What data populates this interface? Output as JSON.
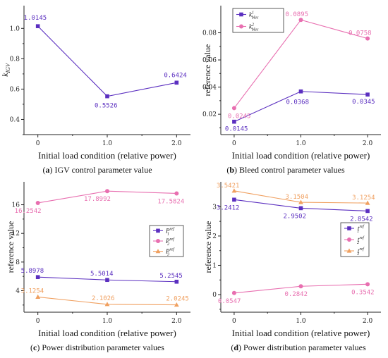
{
  "chart_data": [
    {
      "type": "line",
      "panel_id": "a",
      "caption_letter": "(a)",
      "caption_text": " IGV control parameter value",
      "xlabel": "Initial load condition (relative power)",
      "ylabel": "k_IGV",
      "ylabel_main": "k",
      "ylabel_sub": "IGV",
      "x": [
        0,
        1.0,
        2.0
      ],
      "xtick_labels": [
        "0",
        "1.0",
        "2.0"
      ],
      "xlim": [
        -0.2,
        2.2
      ],
      "ylim": [
        0.3,
        1.15
      ],
      "yticks": [
        0.4,
        0.6,
        0.8,
        1.0
      ],
      "ytick_labels": [
        "0.4",
        "0.6",
        "0.8",
        "1.0"
      ],
      "legend": null,
      "series": [
        {
          "values": [
            1.0145,
            0.5526,
            0.6424
          ],
          "labels": [
            "1.0145",
            "0.5526",
            "0.6424"
          ],
          "color": "#5b2fc0",
          "marker": "square"
        }
      ]
    },
    {
      "type": "line",
      "panel_id": "b",
      "caption_letter": "(b)",
      "caption_text": " Bleed control parameter values",
      "xlabel": "Initial load condition (relative power)",
      "ylabel": "reference value",
      "x": [
        0,
        1.0,
        2.0
      ],
      "xtick_labels": [
        "0",
        "1.0",
        "2.0"
      ],
      "xlim": [
        -0.2,
        2.2
      ],
      "ylim": [
        0.005,
        0.1
      ],
      "yticks": [
        0.02,
        0.04,
        0.06,
        0.08
      ],
      "ytick_labels": [
        "0.02",
        "0.04",
        "0.06",
        "0.08"
      ],
      "legend": "top-left",
      "series": [
        {
          "name": "k¹bleε",
          "legend_main": "k",
          "legend_sup": "1",
          "legend_sub": "bleε",
          "values": [
            0.0145,
            0.0368,
            0.0345
          ],
          "labels": [
            "0.0145",
            "0.0368",
            "0.0345"
          ],
          "color": "#5b2fc0",
          "marker": "square"
        },
        {
          "name": "k²bleε",
          "legend_main": "k",
          "legend_sup": "2",
          "legend_sub": "bleε",
          "values": [
            0.0245,
            0.0895,
            0.0758
          ],
          "labels": [
            "0.0245",
            "0.0895",
            "0.0758"
          ],
          "color": "#e86fb0",
          "marker": "circle"
        }
      ]
    },
    {
      "type": "line",
      "panel_id": "c",
      "caption_letter": "(c)",
      "caption_text": " Power distribution parameter values",
      "xlabel": "Initial load condition (relative power)",
      "ylabel": "reference value",
      "x": [
        0,
        1.0,
        2.0
      ],
      "xtick_labels": [
        "0",
        "1.0",
        "2.0"
      ],
      "xlim": [
        -0.2,
        2.2
      ],
      "ylim": [
        1.0,
        19.2
      ],
      "yticks": [
        4,
        8,
        12,
        16
      ],
      "ytick_labels": [
        "4",
        "8",
        "12",
        "16"
      ],
      "legend": "right",
      "series": [
        {
          "name": "Pʳᵉᶠ₁",
          "legend_main": "P",
          "legend_sup": "ref",
          "legend_sub": "1",
          "values": [
            5.8978,
            5.5014,
            5.2545
          ],
          "labels": [
            "5.8978",
            "5.5014",
            "5.2545"
          ],
          "color": "#5b2fc0",
          "marker": "square"
        },
        {
          "name": "Pʳᵉᶠ₂",
          "legend_main": "P",
          "legend_sup": "ref",
          "legend_sub": "2",
          "values": [
            16.2542,
            17.8992,
            17.5824
          ],
          "labels": [
            "16.2542",
            "17.8992",
            "17.5824"
          ],
          "color": "#e86fb0",
          "marker": "circle"
        },
        {
          "name": "Pʳᵉᶠ₃",
          "legend_main": "P",
          "legend_sup": "ref",
          "legend_sub": "3",
          "values": [
            3.1254,
            2.1026,
            2.0245
          ],
          "labels": [
            "3.1254",
            "2.1026",
            "2.0245"
          ],
          "color": "#f0a060",
          "marker": "triangle"
        }
      ]
    },
    {
      "type": "line",
      "panel_id": "d",
      "caption_letter": "(d)",
      "caption_text": " Power distribution parameter values",
      "xlabel": "Initial load condition (relative power)",
      "ylabel": "reference value",
      "x": [
        0,
        1.0,
        2.0
      ],
      "xtick_labels": [
        "0",
        "1.0",
        "2.0"
      ],
      "xlim": [
        -0.2,
        2.2
      ],
      "ylim": [
        -0.6,
        3.85
      ],
      "yticks": [
        0,
        1,
        2,
        3
      ],
      "ytick_labels": [
        "0",
        "1",
        "2",
        "3"
      ],
      "legend": "right",
      "series": [
        {
          "name": "tʳᵉᶠ₁",
          "legend_main": "t",
          "legend_sup": "ref",
          "legend_sub": "1",
          "values": [
            3.2412,
            2.9502,
            2.8542
          ],
          "labels": [
            "3.2412",
            "2.9502",
            "2.8542"
          ],
          "color": "#5b2fc0",
          "marker": "square"
        },
        {
          "name": "tʳᵉᶠ₂",
          "legend_main": "t",
          "legend_sup": "ref",
          "legend_sub": "2",
          "values": [
            0.0547,
            0.2842,
            0.3542
          ],
          "labels": [
            "0.0547",
            "0.2842",
            "0.3542"
          ],
          "color": "#e86fb0",
          "marker": "circle"
        },
        {
          "name": "tʳᵉᶠ₃",
          "legend_main": "t",
          "legend_sup": "ref",
          "legend_sub": "3",
          "values": [
            3.5421,
            3.1504,
            3.1254
          ],
          "labels": [
            "3.5421",
            "3.1504",
            "3.1254"
          ],
          "color": "#f0a060",
          "marker": "triangle"
        }
      ]
    }
  ]
}
